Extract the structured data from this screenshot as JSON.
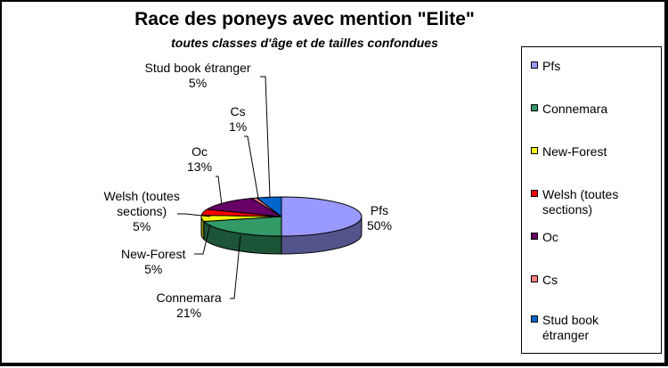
{
  "chart_data": {
    "type": "pie",
    "title": "Race des poneys avec mention \"Elite\"",
    "subtitle": "toutes classes d'âge et  de tailles confondues",
    "slices": [
      {
        "name": "Pfs",
        "value": 50,
        "value_label": "50%",
        "color": "#9999FF",
        "label_lines": [
          "Pfs"
        ]
      },
      {
        "name": "Connemara",
        "value": 21,
        "value_label": "21%",
        "color": "#339966",
        "label_lines": [
          "Connemara"
        ]
      },
      {
        "name": "New-Forest",
        "value": 5,
        "value_label": "5%",
        "color": "#FFFF00",
        "label_lines": [
          "New-Forest"
        ]
      },
      {
        "name": "Welsh (toutes sections)",
        "value": 5,
        "value_label": "5%",
        "color": "#FF0000",
        "label_lines": [
          "Welsh (toutes",
          "sections)"
        ]
      },
      {
        "name": "Oc",
        "value": 13,
        "value_label": "13%",
        "color": "#660066",
        "label_lines": [
          "Oc"
        ]
      },
      {
        "name": "Cs",
        "value": 1,
        "value_label": "1%",
        "color": "#FF8080",
        "label_lines": [
          "Cs"
        ]
      },
      {
        "name": "Stud book étranger",
        "value": 5,
        "value_label": "5%",
        "color": "#0066CC",
        "label_lines": [
          "Stud book étranger"
        ]
      }
    ],
    "legend": {
      "position": "right",
      "entries": [
        {
          "lines": [
            "Pfs"
          ]
        },
        {
          "lines": [
            "Connemara"
          ]
        },
        {
          "lines": [
            "New-Forest"
          ]
        },
        {
          "lines": [
            "Welsh (toutes",
            "sections)"
          ]
        },
        {
          "lines": [
            "Oc"
          ]
        },
        {
          "lines": [
            "Cs"
          ]
        },
        {
          "lines": [
            "Stud book",
            "étranger"
          ]
        }
      ]
    }
  }
}
